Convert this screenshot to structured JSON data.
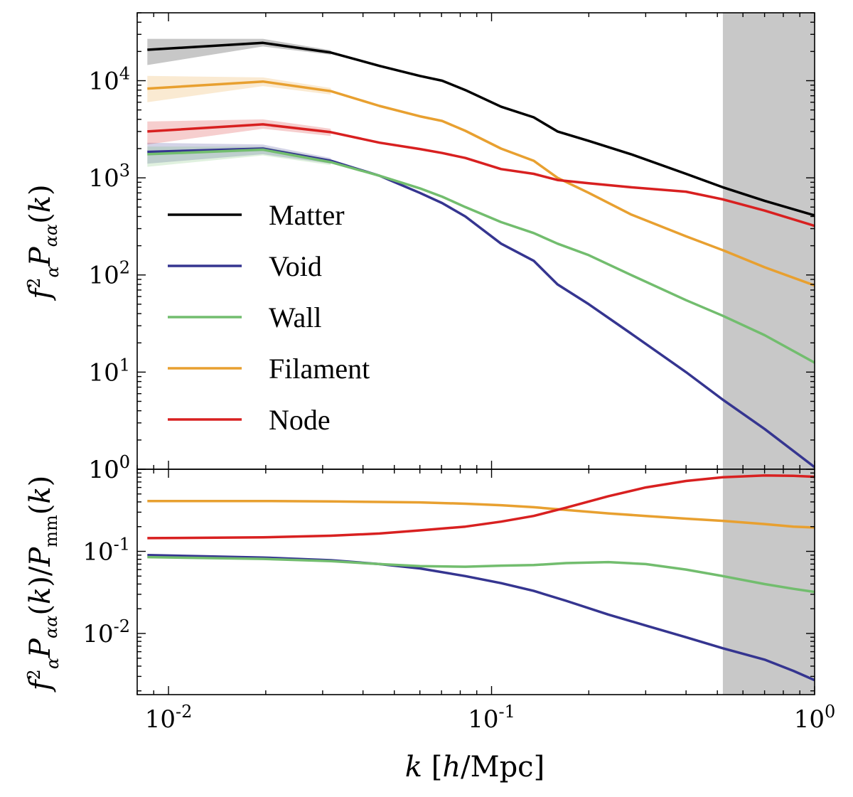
{
  "chart_data": [
    {
      "panel": "top",
      "type": "line",
      "title": "",
      "xscale": "log",
      "yscale": "log",
      "xlim": [
        0.008,
        1.0
      ],
      "ylim": [
        1.0,
        50000
      ],
      "ylabel": "f_α^2 P_αα(k)",
      "xlabel": "",
      "legend_position": "center-left",
      "shaded_region": {
        "from_k": 0.52,
        "to_k": 1.0,
        "color": "#c8c8c8"
      },
      "y_ticks": [
        {
          "value": 1,
          "base": "10",
          "exp": "0"
        },
        {
          "value": 10,
          "base": "10",
          "exp": "1"
        },
        {
          "value": 100,
          "base": "10",
          "exp": "2"
        },
        {
          "value": 1000,
          "base": "10",
          "exp": "3"
        },
        {
          "value": 10000,
          "base": "10",
          "exp": "4"
        }
      ],
      "x": [
        0.0086,
        0.0196,
        0.0318,
        0.045,
        0.06,
        0.0703,
        0.083,
        0.107,
        0.135,
        0.16,
        0.2,
        0.27,
        0.4,
        0.52,
        0.7,
        1.0
      ],
      "series": [
        {
          "name": "Matter",
          "color": "#000000",
          "values": [
            20800,
            24500,
            19500,
            14200,
            11200,
            10000,
            8000,
            5400,
            4200,
            3000,
            2400,
            1750,
            1100,
            800,
            580,
            410
          ],
          "band": [
            [
              14500,
              27000
            ],
            [
              22500,
              27000
            ],
            [
              18500,
              20600
            ],
            null,
            null,
            null,
            null,
            null,
            null,
            null,
            null,
            null,
            null,
            null,
            null,
            null
          ]
        },
        {
          "name": "Void",
          "color": "#353590",
          "values": [
            1850,
            2000,
            1500,
            1050,
            700,
            550,
            400,
            210,
            140,
            80,
            50,
            25,
            10,
            5.2,
            2.6,
            1.05
          ],
          "band": [
            [
              1400,
              2300
            ],
            [
              1750,
              2200
            ],
            [
              1400,
              1600
            ],
            null,
            null,
            null,
            null,
            null,
            null,
            null,
            null,
            null,
            null,
            null,
            null,
            null
          ]
        },
        {
          "name": "Wall",
          "color": "#72bd6e",
          "values": [
            1750,
            1950,
            1450,
            1050,
            780,
            640,
            500,
            350,
            270,
            210,
            160,
            100,
            55,
            38,
            24,
            12.5
          ],
          "band": [
            [
              1300,
              2100
            ],
            [
              1700,
              2100
            ],
            [
              1350,
              1550
            ],
            null,
            null,
            null,
            null,
            null,
            null,
            null,
            null,
            null,
            null,
            null,
            null,
            null
          ]
        },
        {
          "name": "Filament",
          "color": "#e8a030",
          "values": [
            8300,
            9800,
            7800,
            5500,
            4300,
            3850,
            3050,
            2000,
            1500,
            1000,
            700,
            420,
            250,
            180,
            120,
            78
          ],
          "band": [
            [
              6000,
              11200
            ],
            [
              8800,
              10800
            ],
            [
              7200,
              8400
            ],
            null,
            null,
            null,
            null,
            null,
            null,
            null,
            null,
            null,
            null,
            null,
            null,
            null
          ]
        },
        {
          "name": "Node",
          "color": "#d82020",
          "values": [
            3000,
            3550,
            2950,
            2300,
            1980,
            1800,
            1600,
            1230,
            1100,
            950,
            880,
            800,
            720,
            600,
            460,
            320
          ],
          "band": [
            [
              2200,
              3800
            ],
            [
              3200,
              4000
            ],
            [
              2700,
              3200
            ],
            null,
            null,
            null,
            null,
            null,
            null,
            null,
            null,
            null,
            null,
            null,
            null,
            null
          ]
        }
      ],
      "legend": [
        "Matter",
        "Void",
        "Wall",
        "Filament",
        "Node"
      ]
    },
    {
      "panel": "bottom",
      "type": "line",
      "title": "",
      "xscale": "log",
      "yscale": "log",
      "xlim": [
        0.008,
        1.0
      ],
      "ylim": [
        0.0018,
        1.0
      ],
      "ylabel": "f_α^2 P_αα(k) / P_mm(k)",
      "xlabel": "k [h/Mpc]",
      "shaded_region": {
        "from_k": 0.52,
        "to_k": 1.0,
        "color": "#c8c8c8"
      },
      "x_ticks": [
        {
          "value": 0.01,
          "base": "10",
          "exp": "-2"
        },
        {
          "value": 0.1,
          "base": "10",
          "exp": "-1"
        },
        {
          "value": 1.0,
          "base": "10",
          "exp": "0"
        }
      ],
      "y_ticks": [
        {
          "value": 0.01,
          "base": "10",
          "exp": "-2"
        },
        {
          "value": 0.1,
          "base": "10",
          "exp": "-1"
        },
        {
          "value": 1.0,
          "base": "10",
          "exp": "0"
        }
      ],
      "x": [
        0.0086,
        0.0196,
        0.0318,
        0.045,
        0.06,
        0.083,
        0.107,
        0.135,
        0.17,
        0.23,
        0.3,
        0.4,
        0.52,
        0.7,
        0.86,
        1.0
      ],
      "series": [
        {
          "name": "Void",
          "color": "#353590",
          "values": [
            0.09,
            0.084,
            0.078,
            0.07,
            0.062,
            0.05,
            0.041,
            0.033,
            0.025,
            0.017,
            0.0125,
            0.009,
            0.0066,
            0.0048,
            0.0035,
            0.0027
          ]
        },
        {
          "name": "Wall",
          "color": "#72bd6e",
          "values": [
            0.085,
            0.081,
            0.076,
            0.07,
            0.066,
            0.065,
            0.067,
            0.068,
            0.072,
            0.074,
            0.07,
            0.06,
            0.05,
            0.04,
            0.035,
            0.032
          ]
        },
        {
          "name": "Filament",
          "color": "#e8a030",
          "values": [
            0.41,
            0.41,
            0.405,
            0.4,
            0.395,
            0.38,
            0.365,
            0.345,
            0.32,
            0.29,
            0.27,
            0.25,
            0.235,
            0.215,
            0.2,
            0.195
          ]
        },
        {
          "name": "Node",
          "color": "#d82020",
          "values": [
            0.145,
            0.148,
            0.155,
            0.165,
            0.18,
            0.2,
            0.23,
            0.27,
            0.34,
            0.47,
            0.6,
            0.72,
            0.8,
            0.84,
            0.83,
            0.81
          ]
        }
      ]
    }
  ]
}
